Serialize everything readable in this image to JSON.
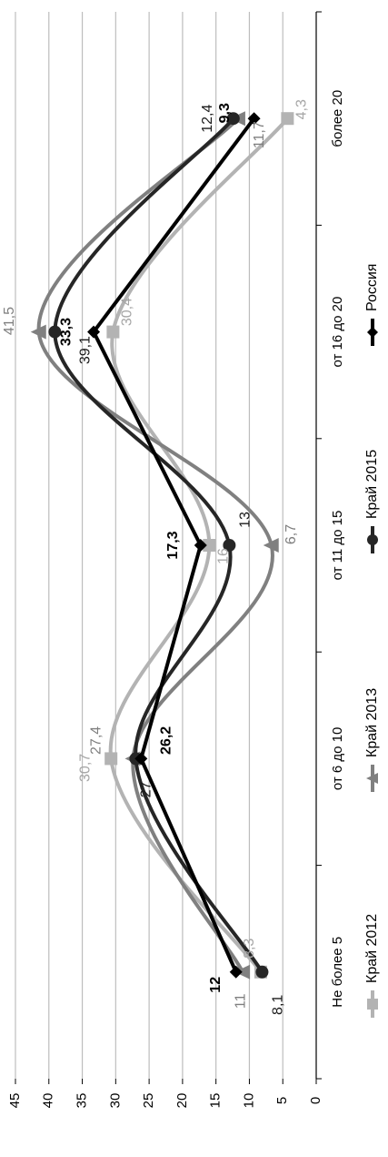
{
  "chart_data": {
    "type": "line",
    "smooth": true,
    "orientation": "rotated-90-ccw",
    "categories": [
      "Не более 5",
      "от 6 до 10",
      "от 11 до 15",
      "от 16 до 20",
      "более 20"
    ],
    "ylim": [
      0,
      45
    ],
    "yticks": [
      0,
      5,
      10,
      15,
      20,
      25,
      30,
      35,
      40,
      45
    ],
    "ytick_labels": [
      "0",
      "5",
      "10",
      "15",
      "20",
      "25",
      "30",
      "35",
      "40",
      "45"
    ],
    "grid": true,
    "legend_position": "bottom",
    "series": [
      {
        "name": "Край 2012",
        "color": "#b3b3b3",
        "marker": "square",
        "values": [
          8.3,
          30.7,
          16,
          30.4,
          4.3
        ],
        "labels": [
          "8,3",
          "30,7",
          "16",
          "30,4",
          "4,3"
        ]
      },
      {
        "name": "Край 2013",
        "color": "#808080",
        "marker": "triangle",
        "values": [
          11,
          27.4,
          6.7,
          41.5,
          11.7
        ],
        "labels": [
          "11",
          "27,4",
          "6,7",
          "41,5",
          "11,7"
        ]
      },
      {
        "name": "Край 2015",
        "color": "#262626",
        "marker": "circle",
        "values": [
          8.1,
          27,
          13,
          39.1,
          12.4
        ],
        "labels": [
          "8,1",
          "27",
          "13",
          "39,1",
          "12,4"
        ]
      },
      {
        "name": "Россия",
        "color": "#000000",
        "marker": "diamond",
        "values": [
          12,
          26.2,
          17.3,
          33.3,
          9.3
        ],
        "labels": [
          "12",
          "26,2",
          "17,3",
          "33,3",
          "9,3"
        ]
      }
    ]
  }
}
